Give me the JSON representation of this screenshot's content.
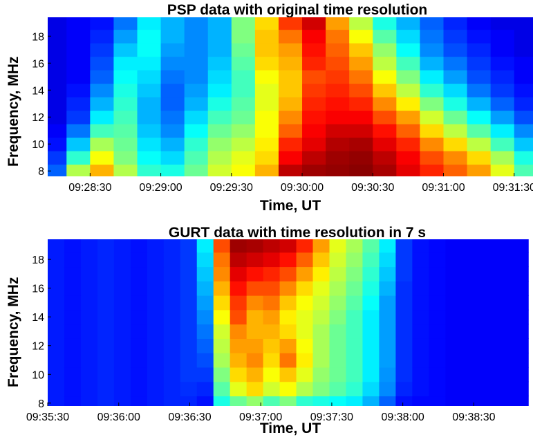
{
  "chart_data": [
    {
      "type": "heatmap",
      "title": "PSP data with original time resolution",
      "xlabel": "Time, UT",
      "ylabel": "Frequency, MHz",
      "x_ticks": [
        "09:28:30",
        "09:29:00",
        "09:29:30",
        "09:30:00",
        "09:30:30",
        "09:31:00",
        "09:31:30"
      ],
      "y_ticks": [
        "8",
        "10",
        "12",
        "14",
        "16",
        "18"
      ],
      "xlim": [
        "09:28:12",
        "09:31:38"
      ],
      "ylim": [
        7.6,
        19.4
      ],
      "colormap": "jet",
      "frequency_rows": [
        8,
        9,
        10,
        11,
        12,
        13,
        14,
        15,
        16,
        17,
        18,
        19
      ],
      "time_columns": [
        "09:28:15",
        "09:28:25",
        "09:28:35",
        "09:28:45",
        "09:28:55",
        "09:29:05",
        "09:29:15",
        "09:29:25",
        "09:29:35",
        "09:29:45",
        "09:29:55",
        "09:30:05",
        "09:30:15",
        "09:30:25",
        "09:30:35",
        "09:30:45",
        "09:30:55",
        "09:31:05",
        "09:31:15",
        "09:31:25",
        "09:31:35"
      ],
      "intensity": [
        [
          0.22,
          0.55,
          0.7,
          0.55,
          0.42,
          0.4,
          0.48,
          0.58,
          0.62,
          0.7,
          0.94,
          0.97,
          0.98,
          0.99,
          0.96,
          0.9,
          0.84,
          0.78,
          0.72,
          0.6,
          0.45
        ],
        [
          0.18,
          0.42,
          0.62,
          0.5,
          0.38,
          0.34,
          0.45,
          0.55,
          0.6,
          0.66,
          0.88,
          0.94,
          0.97,
          0.98,
          0.94,
          0.88,
          0.8,
          0.74,
          0.66,
          0.54,
          0.4
        ],
        [
          0.14,
          0.32,
          0.54,
          0.48,
          0.35,
          0.3,
          0.42,
          0.52,
          0.56,
          0.64,
          0.84,
          0.9,
          0.95,
          0.96,
          0.9,
          0.84,
          0.74,
          0.66,
          0.56,
          0.44,
          0.32
        ],
        [
          0.12,
          0.24,
          0.44,
          0.46,
          0.32,
          0.26,
          0.38,
          0.48,
          0.52,
          0.62,
          0.78,
          0.88,
          0.92,
          0.92,
          0.86,
          0.78,
          0.66,
          0.56,
          0.46,
          0.36,
          0.26
        ],
        [
          0.1,
          0.18,
          0.36,
          0.44,
          0.3,
          0.24,
          0.34,
          0.44,
          0.48,
          0.62,
          0.74,
          0.86,
          0.88,
          0.88,
          0.8,
          0.72,
          0.58,
          0.48,
          0.38,
          0.28,
          0.2
        ],
        [
          0.1,
          0.16,
          0.3,
          0.42,
          0.3,
          0.22,
          0.3,
          0.4,
          0.46,
          0.6,
          0.7,
          0.84,
          0.86,
          0.84,
          0.74,
          0.64,
          0.5,
          0.4,
          0.3,
          0.22,
          0.16
        ],
        [
          0.1,
          0.14,
          0.26,
          0.4,
          0.32,
          0.22,
          0.28,
          0.36,
          0.44,
          0.6,
          0.68,
          0.82,
          0.84,
          0.8,
          0.68,
          0.56,
          0.42,
          0.34,
          0.24,
          0.18,
          0.14
        ],
        [
          0.1,
          0.12,
          0.22,
          0.38,
          0.34,
          0.24,
          0.26,
          0.34,
          0.44,
          0.62,
          0.68,
          0.8,
          0.82,
          0.76,
          0.62,
          0.5,
          0.36,
          0.28,
          0.2,
          0.16,
          0.12
        ],
        [
          0.1,
          0.12,
          0.2,
          0.36,
          0.36,
          0.26,
          0.26,
          0.32,
          0.46,
          0.66,
          0.7,
          0.84,
          0.8,
          0.72,
          0.56,
          0.44,
          0.3,
          0.24,
          0.18,
          0.14,
          0.12
        ],
        [
          0.1,
          0.12,
          0.18,
          0.32,
          0.38,
          0.28,
          0.26,
          0.3,
          0.48,
          0.68,
          0.72,
          0.86,
          0.78,
          0.68,
          0.52,
          0.38,
          0.26,
          0.2,
          0.16,
          0.12,
          0.1
        ],
        [
          0.1,
          0.12,
          0.16,
          0.28,
          0.38,
          0.3,
          0.26,
          0.3,
          0.5,
          0.68,
          0.76,
          0.88,
          0.76,
          0.62,
          0.46,
          0.34,
          0.24,
          0.18,
          0.14,
          0.12,
          0.1
        ],
        [
          0.1,
          0.12,
          0.14,
          0.24,
          0.36,
          0.3,
          0.26,
          0.3,
          0.5,
          0.66,
          0.82,
          0.92,
          0.72,
          0.56,
          0.4,
          0.3,
          0.22,
          0.16,
          0.12,
          0.1,
          0.1
        ]
      ]
    },
    {
      "type": "heatmap",
      "title": "GURT data with time resolution in 7 s",
      "xlabel": "Time, UT",
      "ylabel": "Frequency, MHz",
      "x_ticks": [
        "09:35:30",
        "09:36:00",
        "09:36:30",
        "09:37:00",
        "09:37:30",
        "09:38:00",
        "09:38:30"
      ],
      "y_ticks": [
        "8",
        "10",
        "12",
        "14",
        "16",
        "18"
      ],
      "xlim": [
        "09:35:30",
        "09:38:55"
      ],
      "ylim": [
        7.8,
        19.4
      ],
      "colormap": "jet",
      "frequency_rows": [
        8,
        9,
        10,
        11,
        12,
        13,
        14,
        15,
        16,
        17,
        18,
        19
      ],
      "time_columns": [
        "09:35:33.5",
        "09:35:40.5",
        "09:35:47.5",
        "09:35:54.5",
        "09:36:01.5",
        "09:36:08.5",
        "09:36:15.5",
        "09:36:22.5",
        "09:36:29.5",
        "09:36:36.5",
        "09:36:43.5",
        "09:36:50.5",
        "09:36:57.5",
        "09:37:04.5",
        "09:37:11.5",
        "09:37:18.5",
        "09:37:25.5",
        "09:37:32.5",
        "09:37:39.5",
        "09:37:46.5",
        "09:37:53.5",
        "09:38:00.5",
        "09:38:07.5",
        "09:38:14.5",
        "09:38:21.5",
        "09:38:28.5",
        "09:38:35.5",
        "09:38:42.5",
        "09:38:49.5"
      ],
      "intensity": [
        [
          0.15,
          0.14,
          0.15,
          0.16,
          0.15,
          0.14,
          0.15,
          0.16,
          0.16,
          0.14,
          0.4,
          0.48,
          0.52,
          0.45,
          0.5,
          0.42,
          0.4,
          0.38,
          0.36,
          0.3,
          0.22,
          0.14,
          0.13,
          0.13,
          0.12,
          0.12,
          0.12,
          0.12,
          0.12
        ],
        [
          0.15,
          0.14,
          0.15,
          0.16,
          0.15,
          0.14,
          0.15,
          0.16,
          0.17,
          0.16,
          0.46,
          0.6,
          0.66,
          0.58,
          0.62,
          0.55,
          0.5,
          0.46,
          0.42,
          0.34,
          0.26,
          0.16,
          0.14,
          0.13,
          0.12,
          0.12,
          0.12,
          0.12,
          0.12
        ],
        [
          0.15,
          0.14,
          0.15,
          0.16,
          0.15,
          0.14,
          0.15,
          0.16,
          0.18,
          0.18,
          0.5,
          0.66,
          0.7,
          0.62,
          0.68,
          0.6,
          0.52,
          0.48,
          0.44,
          0.36,
          0.27,
          0.17,
          0.14,
          0.13,
          0.12,
          0.12,
          0.12,
          0.12,
          0.12
        ],
        [
          0.15,
          0.14,
          0.15,
          0.16,
          0.15,
          0.14,
          0.15,
          0.16,
          0.18,
          0.2,
          0.54,
          0.7,
          0.74,
          0.66,
          0.76,
          0.64,
          0.54,
          0.48,
          0.44,
          0.36,
          0.28,
          0.17,
          0.14,
          0.13,
          0.12,
          0.12,
          0.12,
          0.12,
          0.12
        ],
        [
          0.15,
          0.14,
          0.15,
          0.16,
          0.15,
          0.14,
          0.15,
          0.16,
          0.18,
          0.22,
          0.56,
          0.72,
          0.72,
          0.68,
          0.72,
          0.62,
          0.54,
          0.48,
          0.44,
          0.36,
          0.28,
          0.17,
          0.14,
          0.13,
          0.12,
          0.12,
          0.12,
          0.12,
          0.12
        ],
        [
          0.15,
          0.14,
          0.15,
          0.16,
          0.15,
          0.14,
          0.15,
          0.16,
          0.18,
          0.24,
          0.58,
          0.74,
          0.7,
          0.7,
          0.66,
          0.6,
          0.54,
          0.48,
          0.44,
          0.36,
          0.28,
          0.17,
          0.14,
          0.13,
          0.12,
          0.12,
          0.12,
          0.12,
          0.12
        ],
        [
          0.15,
          0.14,
          0.15,
          0.16,
          0.15,
          0.14,
          0.15,
          0.16,
          0.18,
          0.26,
          0.62,
          0.8,
          0.7,
          0.72,
          0.64,
          0.6,
          0.56,
          0.5,
          0.44,
          0.36,
          0.28,
          0.17,
          0.14,
          0.13,
          0.12,
          0.12,
          0.12,
          0.12,
          0.12
        ],
        [
          0.15,
          0.14,
          0.15,
          0.16,
          0.15,
          0.14,
          0.15,
          0.16,
          0.18,
          0.28,
          0.66,
          0.82,
          0.74,
          0.76,
          0.68,
          0.62,
          0.58,
          0.52,
          0.46,
          0.38,
          0.28,
          0.17,
          0.14,
          0.13,
          0.12,
          0.12,
          0.12,
          0.12,
          0.12
        ],
        [
          0.15,
          0.14,
          0.15,
          0.16,
          0.15,
          0.14,
          0.15,
          0.16,
          0.18,
          0.3,
          0.7,
          0.86,
          0.8,
          0.8,
          0.74,
          0.66,
          0.6,
          0.54,
          0.48,
          0.4,
          0.3,
          0.17,
          0.14,
          0.13,
          0.12,
          0.12,
          0.12,
          0.12,
          0.12
        ],
        [
          0.15,
          0.14,
          0.15,
          0.16,
          0.15,
          0.14,
          0.15,
          0.16,
          0.18,
          0.32,
          0.74,
          0.9,
          0.86,
          0.84,
          0.8,
          0.72,
          0.64,
          0.56,
          0.5,
          0.42,
          0.32,
          0.18,
          0.14,
          0.13,
          0.12,
          0.12,
          0.12,
          0.12,
          0.12
        ],
        [
          0.15,
          0.14,
          0.15,
          0.16,
          0.15,
          0.14,
          0.15,
          0.16,
          0.18,
          0.34,
          0.76,
          0.94,
          0.92,
          0.9,
          0.86,
          0.78,
          0.68,
          0.58,
          0.52,
          0.44,
          0.34,
          0.18,
          0.14,
          0.13,
          0.12,
          0.12,
          0.12,
          0.12,
          0.12
        ],
        [
          0.15,
          0.14,
          0.15,
          0.16,
          0.15,
          0.14,
          0.15,
          0.16,
          0.18,
          0.36,
          0.8,
          0.97,
          0.96,
          0.94,
          0.92,
          0.84,
          0.72,
          0.6,
          0.54,
          0.46,
          0.36,
          0.18,
          0.14,
          0.13,
          0.12,
          0.12,
          0.12,
          0.12,
          0.12
        ]
      ]
    }
  ]
}
